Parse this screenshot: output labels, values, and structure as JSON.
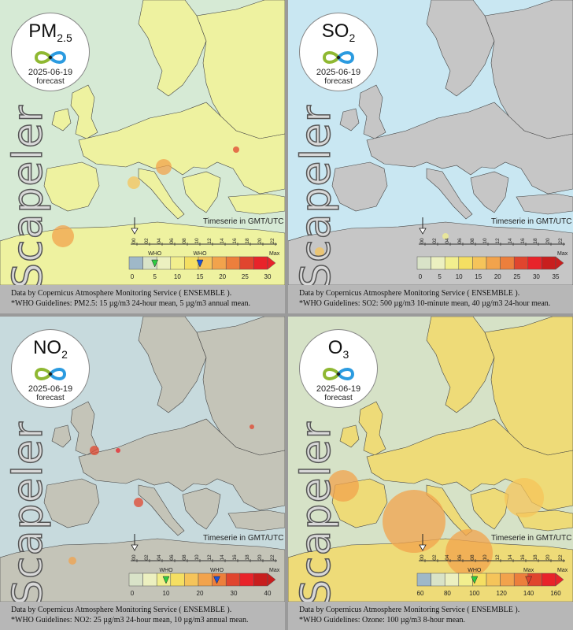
{
  "panels": [
    {
      "pollutant_main": "PM",
      "pollutant_sub": "2.5",
      "date": "2025-06-19",
      "forecast_label": "forecast",
      "brand": "Scapeler",
      "timezone_label": "Timeserie in GMT/UTC",
      "hour_labels": [
        "00",
        "02",
        "04",
        "06",
        "08",
        "10",
        "12",
        "14",
        "16",
        "18",
        "20",
        "22"
      ],
      "legend_labels": [
        "0",
        "5",
        "10",
        "15",
        "20",
        "25",
        "30"
      ],
      "legend_swatches": [
        "#9fb8c8",
        "#d9e3c8",
        "#ecf0c0",
        "#f2ef8e",
        "#f5df62",
        "#f5c45a",
        "#f2a34c",
        "#ec7f3c",
        "#e0452e",
        "#e8232a"
      ],
      "who_markers": [
        {
          "label": "WHO",
          "value": 5,
          "color": "#2ecc40"
        },
        {
          "label": "WHO",
          "value": 15,
          "color": "#1c52d9"
        }
      ],
      "max_label": "Max",
      "caption_line1": "Data by Copernicus Atmosphere Monitoring Service ( ENSEMBLE ).",
      "caption_line2": "*WHO Guidelines: PM2.5: 15 µg/m3 24-hour mean, 5 µg/m3 annual mean.",
      "tint": "#eef2a0"
    },
    {
      "pollutant_main": "SO",
      "pollutant_sub": "2",
      "date": "2025-06-19",
      "forecast_label": "forecast",
      "brand": "Scapeler",
      "timezone_label": "Timeserie in GMT/UTC",
      "hour_labels": [
        "00",
        "02",
        "04",
        "06",
        "08",
        "10",
        "12",
        "14",
        "16",
        "18",
        "20",
        "22"
      ],
      "legend_labels": [
        "0",
        "5",
        "10",
        "15",
        "20",
        "25",
        "30",
        "35"
      ],
      "legend_swatches": [
        "#d9e3c8",
        "#ecf0c0",
        "#f2ef8e",
        "#f5df62",
        "#f5c45a",
        "#f2a34c",
        "#ec7f3c",
        "#e0452e",
        "#e8232a",
        "#c81e1e"
      ],
      "who_markers": [],
      "max_label": "Max",
      "caption_line1": "Data by Copernicus Atmosphere Monitoring Service ( ENSEMBLE ).",
      "caption_line2": "*WHO Guidelines: SO2: 500 µg/m3 10-minute mean, 40 µg/m3 24-hour mean.",
      "tint": "#c6c6c6"
    },
    {
      "pollutant_main": "NO",
      "pollutant_sub": "2",
      "date": "2025-06-19",
      "forecast_label": "forecast",
      "brand": "Scapeler",
      "timezone_label": "Timeserie in GMT/UTC",
      "hour_labels": [
        "00",
        "02",
        "04",
        "06",
        "08",
        "10",
        "12",
        "14",
        "16",
        "18",
        "20",
        "22"
      ],
      "legend_labels": [
        "0",
        "10",
        "20",
        "30",
        "40"
      ],
      "legend_swatches": [
        "#d9e3c8",
        "#ecf0c0",
        "#f2ef8e",
        "#f5df62",
        "#f5c45a",
        "#f2a34c",
        "#ec7f3c",
        "#e0452e",
        "#e8232a",
        "#c81e1e"
      ],
      "who_markers": [
        {
          "label": "WHO",
          "value": 10,
          "color": "#2ecc40"
        },
        {
          "label": "WHO",
          "value": 25,
          "color": "#1c52d9"
        }
      ],
      "max_label": "Max",
      "caption_line1": "Data by Copernicus Atmosphere Monitoring Service ( ENSEMBLE ).",
      "caption_line2": "*WHO Guidelines: NO2: 25 µg/m3 24-hour mean, 10 µg/m3 annual mean.",
      "tint": "#c4c4b8"
    },
    {
      "pollutant_main": "O",
      "pollutant_sub": "3",
      "date": "2025-06-19",
      "forecast_label": "forecast",
      "brand": "Scapeler",
      "timezone_label": "Timeserie in GMT/UTC",
      "hour_labels": [
        "00",
        "02",
        "04",
        "06",
        "08",
        "10",
        "12",
        "14",
        "16",
        "18",
        "20",
        "22"
      ],
      "legend_labels": [
        "60",
        "80",
        "100",
        "120",
        "140",
        "160"
      ],
      "legend_swatches": [
        "#9fb8c8",
        "#d9e3c8",
        "#ecf0c0",
        "#f2ef8e",
        "#f5df62",
        "#f5c45a",
        "#f2a34c",
        "#ec7f3c",
        "#e0452e",
        "#e8232a"
      ],
      "who_markers": [
        {
          "label": "WHO",
          "value": 100,
          "color": "#2ecc40"
        },
        {
          "label": "Max",
          "value": 140,
          "color": "#e0452e"
        }
      ],
      "max_label": "Max",
      "caption_line1": "Data by Copernicus Atmosphere Monitoring Service ( ENSEMBLE ).",
      "caption_line2": "*WHO Guidelines: Ozone: 100 µg/m3 8-hour mean.",
      "tint": "#eedb78"
    }
  ]
}
